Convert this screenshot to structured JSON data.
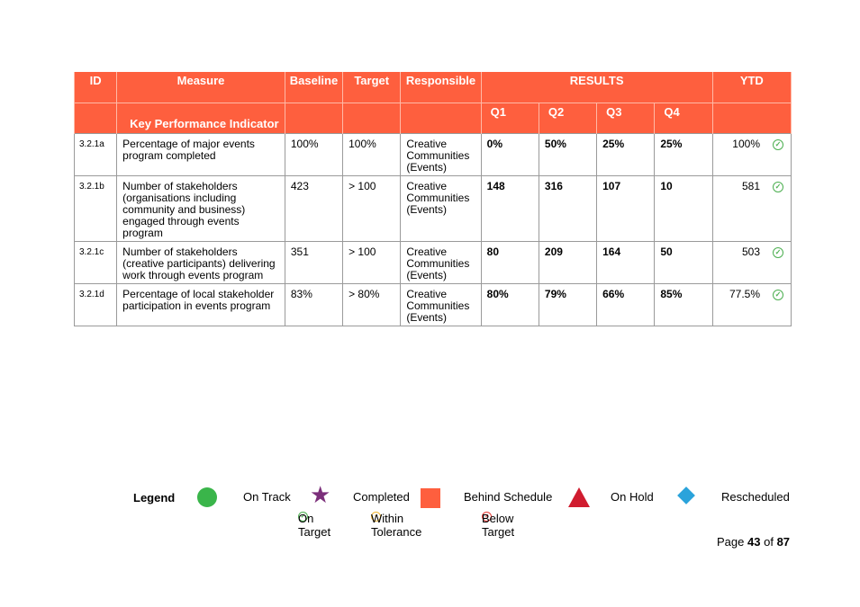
{
  "table": {
    "headers": {
      "id": "ID",
      "measure": "Measure",
      "baseline": "Baseline",
      "target": "Target",
      "responsible": "Responsible",
      "results": "RESULTS",
      "ytd": "YTD",
      "kpi": "Key Performance Indicator",
      "q1": "Q1",
      "q2": "Q2",
      "q3": "Q3",
      "q4": "Q4"
    },
    "rows": [
      {
        "id": "3.2.1a",
        "measure": "Percentage of major events program completed",
        "baseline": "100%",
        "target": "100%",
        "responsible_1": "Creative",
        "responsible_2": "Communities",
        "responsible_3": "(Events)",
        "q1": "0%",
        "q2": "50%",
        "q3": "25%",
        "q4": "25%",
        "ytd": "100%",
        "status_icon": "check-circle-icon"
      },
      {
        "id": "3.2.1b",
        "measure": "Number of stakeholders (organisations including community and business) engaged through events program",
        "baseline": "423",
        "target": "> 100",
        "responsible_1": "Creative",
        "responsible_2": "Communities",
        "responsible_3": "(Events)",
        "q1": "148",
        "q2": "316",
        "q3": "107",
        "q4": "10",
        "ytd": "581",
        "status_icon": "check-circle-icon"
      },
      {
        "id": "3.2.1c",
        "measure": "Number of stakeholders (creative participants) delivering work through events program",
        "baseline": "351",
        "target": "> 100",
        "responsible_1": "Creative",
        "responsible_2": "Communities",
        "responsible_3": "(Events)",
        "q1": "80",
        "q2": "209",
        "q3": "164",
        "q4": "50",
        "ytd": "503",
        "status_icon": "check-circle-icon"
      },
      {
        "id": "3.2.1d",
        "measure": "Percentage of local stakeholder participation in events program",
        "baseline": "83%",
        "target": "> 80%",
        "responsible_1": "Creative",
        "responsible_2": "Communities",
        "responsible_3": "(Events)",
        "q1": "80%",
        "q2": "79%",
        "q3": "66%",
        "q4": "85%",
        "ytd": "77.5%",
        "status_icon": "check-circle-icon"
      }
    ]
  },
  "legend": {
    "title": "Legend",
    "on_track": "On Track",
    "completed": "Completed",
    "behind_schedule": "Behind Schedule",
    "on_hold": "On Hold",
    "rescheduled": "Rescheduled",
    "on_target": "On Target",
    "within_tolerance": "Within Tolerance",
    "below_target": "Below Target",
    "colors": {
      "on_track": "#3ab54a",
      "completed": "#7b2f7a",
      "behind_schedule": "#fe5f3e",
      "on_hold": "#d01c2f",
      "rescheduled": "#2aa3db"
    }
  },
  "page": {
    "prefix": "Page",
    "current": "43",
    "of": "of",
    "total": "87"
  },
  "colors": {
    "header_bg": "#fe5f3e"
  }
}
